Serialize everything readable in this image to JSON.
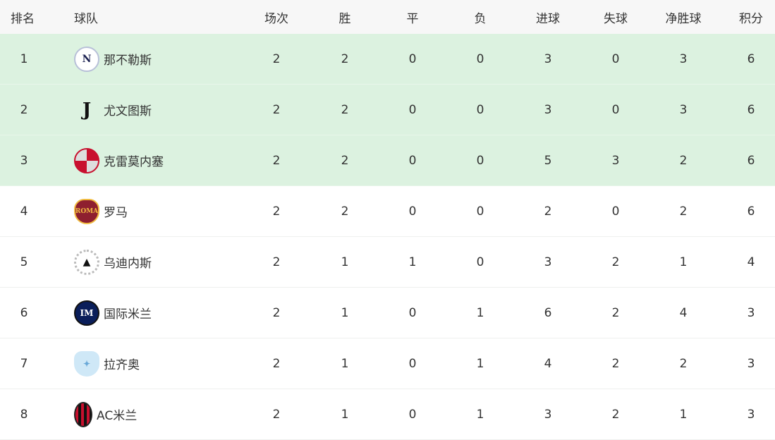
{
  "headers": {
    "rank": "排名",
    "team": "球队",
    "played": "场次",
    "won": "胜",
    "drawn": "平",
    "lost": "负",
    "gf": "进球",
    "ga": "失球",
    "gd": "净胜球",
    "pts": "积分"
  },
  "highlight_color": "#dcf2e0",
  "rows": [
    {
      "rank": "1",
      "team": "那不勒斯",
      "logo": "napoli-logo",
      "played": "2",
      "won": "2",
      "drawn": "0",
      "lost": "0",
      "gf": "3",
      "ga": "0",
      "gd": "3",
      "pts": "6",
      "highlight": true
    },
    {
      "rank": "2",
      "team": "尤文图斯",
      "logo": "juventus-logo",
      "played": "2",
      "won": "2",
      "drawn": "0",
      "lost": "0",
      "gf": "3",
      "ga": "0",
      "gd": "3",
      "pts": "6",
      "highlight": true
    },
    {
      "rank": "3",
      "team": "克雷莫内塞",
      "logo": "cremonese-logo",
      "played": "2",
      "won": "2",
      "drawn": "0",
      "lost": "0",
      "gf": "5",
      "ga": "3",
      "gd": "2",
      "pts": "6",
      "highlight": true
    },
    {
      "rank": "4",
      "team": "罗马",
      "logo": "roma-logo",
      "played": "2",
      "won": "2",
      "drawn": "0",
      "lost": "0",
      "gf": "2",
      "ga": "0",
      "gd": "2",
      "pts": "6",
      "highlight": false
    },
    {
      "rank": "5",
      "team": "乌迪内斯",
      "logo": "udinese-logo",
      "played": "2",
      "won": "1",
      "drawn": "1",
      "lost": "0",
      "gf": "3",
      "ga": "2",
      "gd": "1",
      "pts": "4",
      "highlight": false
    },
    {
      "rank": "6",
      "team": "国际米兰",
      "logo": "inter-logo",
      "played": "2",
      "won": "1",
      "drawn": "0",
      "lost": "1",
      "gf": "6",
      "ga": "2",
      "gd": "4",
      "pts": "3",
      "highlight": false
    },
    {
      "rank": "7",
      "team": "拉齐奥",
      "logo": "lazio-logo",
      "played": "2",
      "won": "1",
      "drawn": "0",
      "lost": "1",
      "gf": "4",
      "ga": "2",
      "gd": "2",
      "pts": "3",
      "highlight": false
    },
    {
      "rank": "8",
      "team": "AC米兰",
      "logo": "milan-logo",
      "played": "2",
      "won": "1",
      "drawn": "0",
      "lost": "1",
      "gf": "3",
      "ga": "2",
      "gd": "1",
      "pts": "3",
      "highlight": false
    }
  ]
}
